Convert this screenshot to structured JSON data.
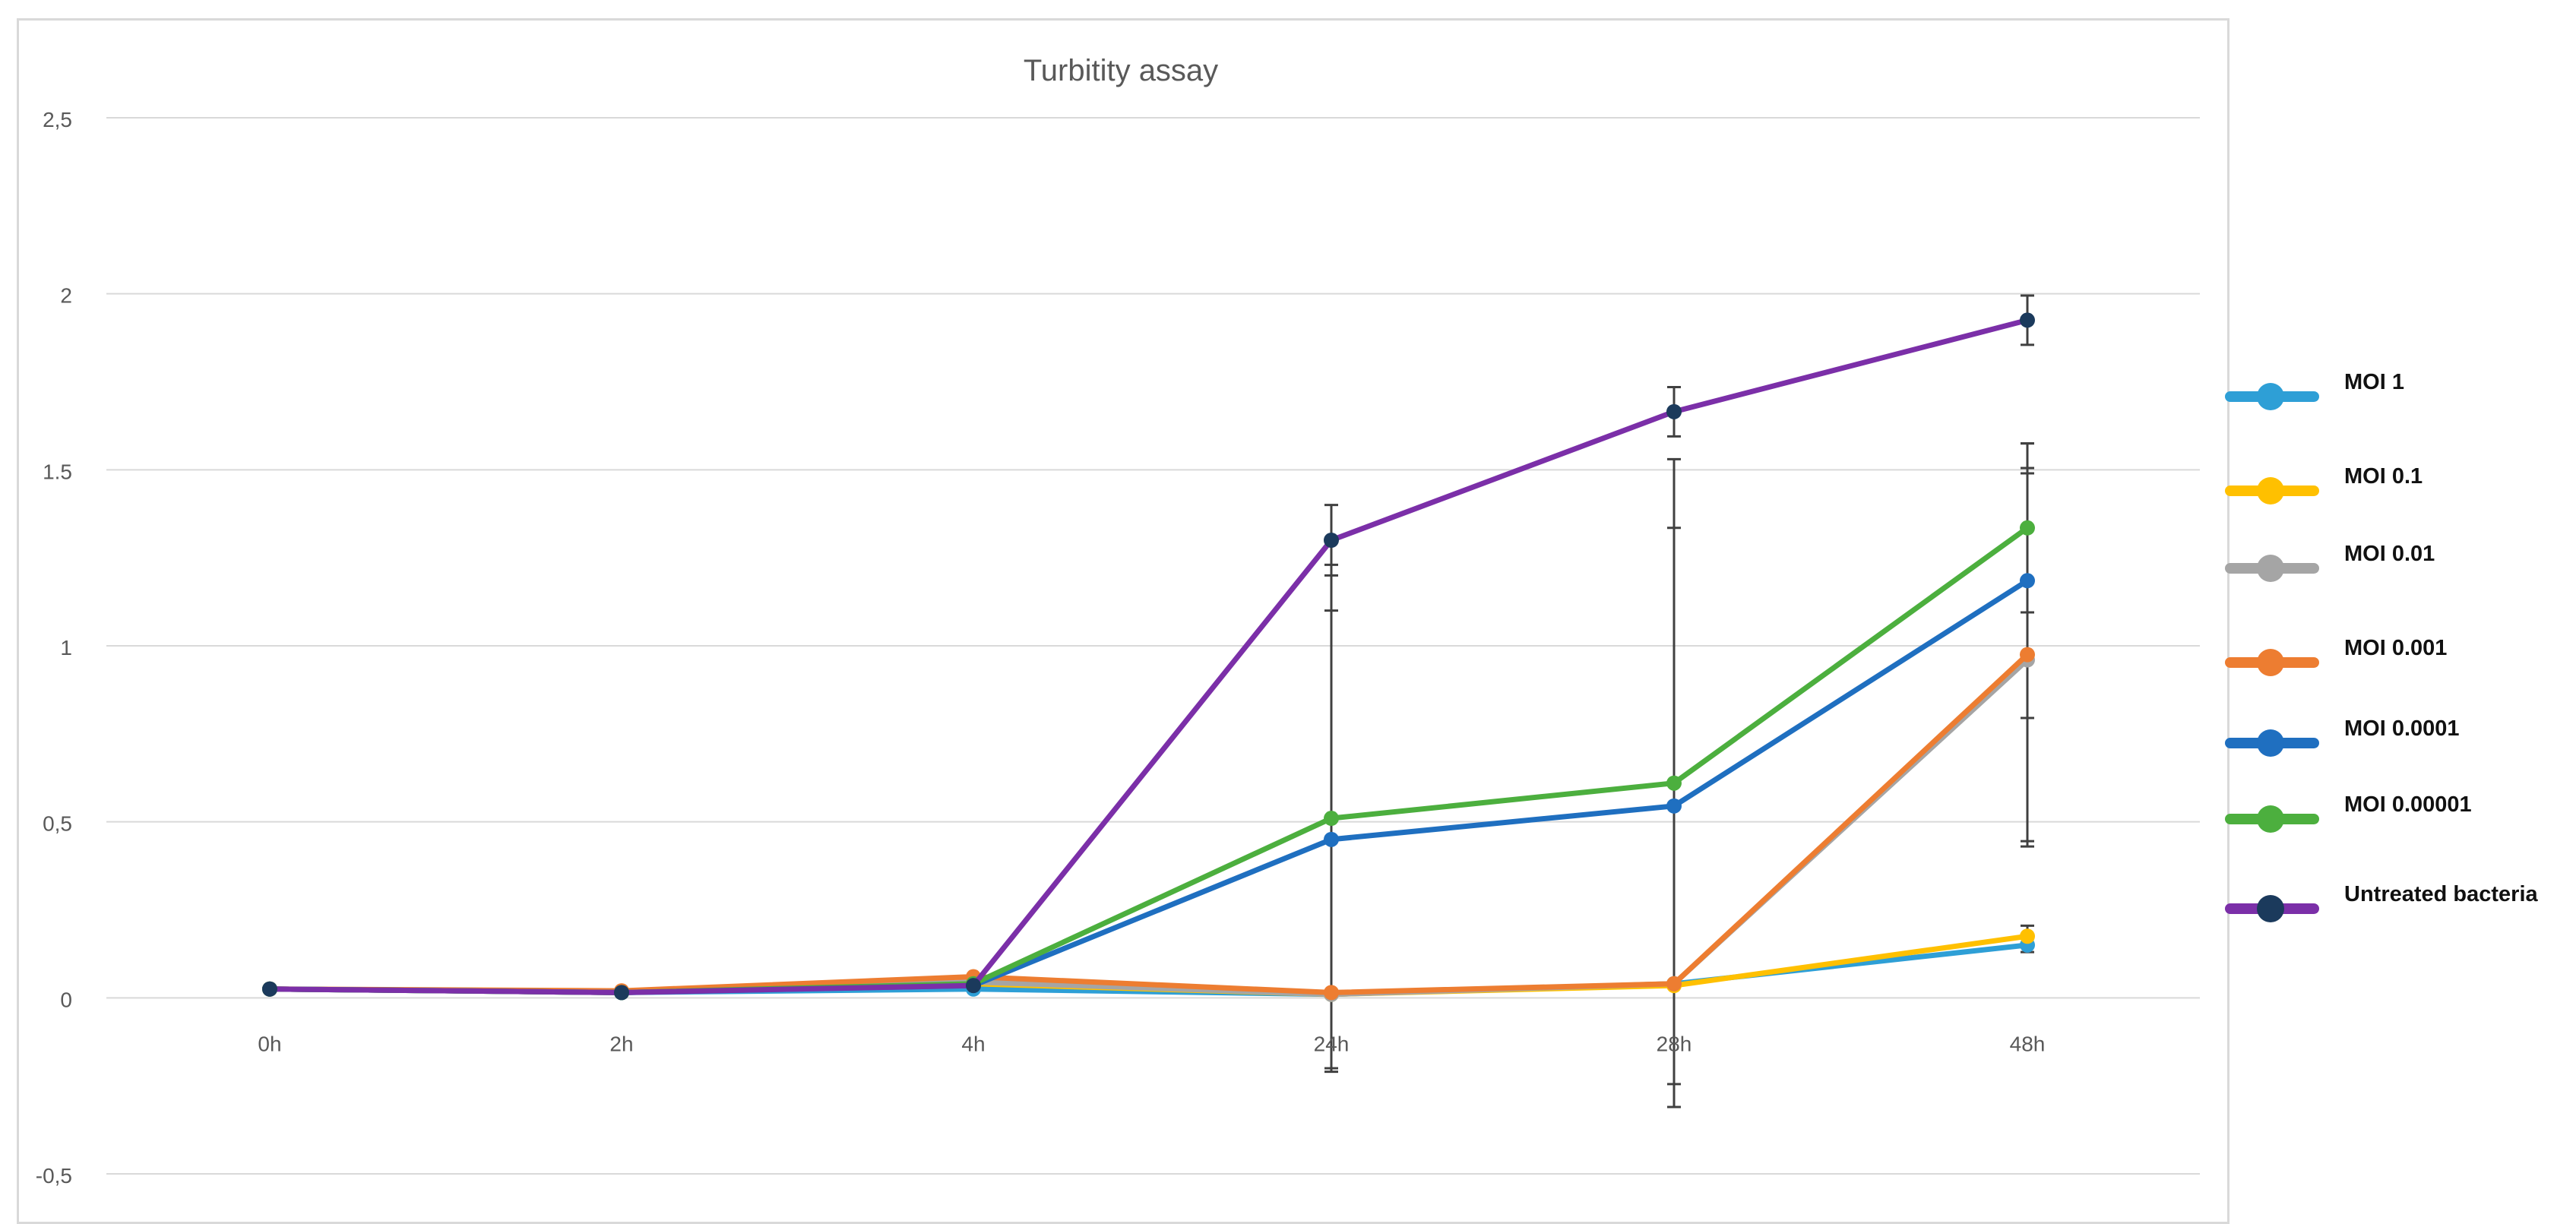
{
  "chart_data": {
    "type": "line",
    "title": "Turbitity assay",
    "xlabel": "",
    "ylabel": "",
    "categories": [
      "0h",
      "2h",
      "4h",
      "24h",
      "28h",
      "48h"
    ],
    "ylim": [
      -0.5,
      2.5
    ],
    "yticks": [
      -0.5,
      0,
      0.5,
      1,
      1.5,
      2,
      2.5
    ],
    "ytick_labels": [
      "-0,5",
      "0",
      "0,5",
      "1",
      "1.5",
      "2",
      "2,5"
    ],
    "grid": true,
    "legend_position": "right",
    "series": [
      {
        "name": "MOI 1",
        "color": "#2e9fd6",
        "values": [
          0.025,
          0.015,
          0.025,
          0.01,
          0.04,
          0.15
        ],
        "errors": [
          0,
          0,
          0,
          0,
          0,
          0.02
        ]
      },
      {
        "name": "MOI 0.1",
        "color": "#ffc000",
        "values": [
          0.025,
          0.015,
          0.04,
          0.01,
          0.035,
          0.175
        ],
        "errors": [
          0,
          0,
          0,
          0,
          0,
          0.03
        ]
      },
      {
        "name": "MOI 0.01",
        "color": "#a5a5a5",
        "values": [
          0.025,
          0.015,
          0.045,
          0.01,
          0.04,
          0.96
        ],
        "errors": [
          0,
          0,
          0,
          0,
          0,
          0.53
        ]
      },
      {
        "name": "MOI 0.001",
        "color": "#ed7d31",
        "values": [
          0.025,
          0.02,
          0.06,
          0.015,
          0.04,
          0.975
        ],
        "errors": [
          0,
          0,
          0,
          0,
          0,
          0.53
        ]
      },
      {
        "name": "MOI 0.0001",
        "color": "#1f6fc0",
        "values": [
          0.025,
          0.015,
          0.035,
          0.45,
          0.545,
          1.185
        ],
        "errors": [
          0,
          0,
          0,
          0.65,
          0.79,
          0.39
        ]
      },
      {
        "name": "MOI 0.00001",
        "color": "#4caf3e",
        "values": [
          0.025,
          0.015,
          0.04,
          0.51,
          0.61,
          1.335
        ],
        "errors": [
          0,
          0,
          0,
          0.72,
          0.92,
          0.24
        ]
      },
      {
        "name": "Untreated bacteria",
        "color": "#7b2fa8",
        "marker_color": "#1b3a5c",
        "values": [
          0.025,
          0.015,
          0.035,
          1.3,
          1.665,
          1.925
        ],
        "errors": [
          0,
          0,
          0,
          0.1,
          0.07,
          0.07
        ]
      }
    ]
  }
}
